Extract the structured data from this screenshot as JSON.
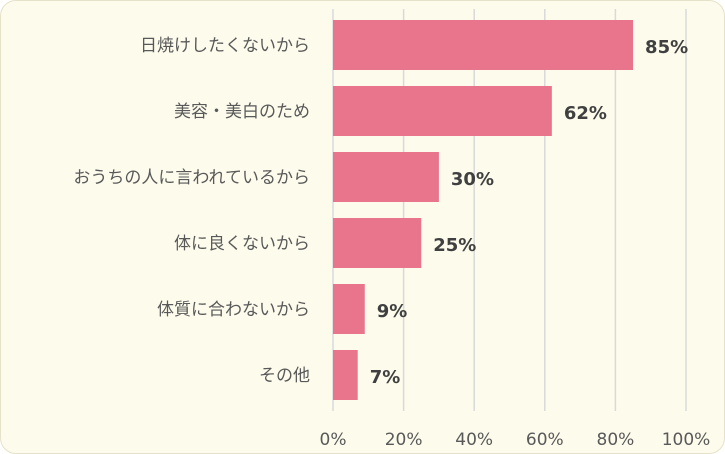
{
  "chart_data": {
    "type": "bar",
    "orientation": "horizontal",
    "categories": [
      "日焼けしたくないから",
      "美容・美白のため",
      "おうちの人に言われているから",
      "体に良くないから",
      "体質に合わないから",
      "その他"
    ],
    "values": [
      85,
      62,
      30,
      25,
      9,
      7
    ],
    "value_labels": [
      "85%",
      "62%",
      "30%",
      "25%",
      "9%",
      "7%"
    ],
    "x_ticks": [
      "0%",
      "20%",
      "40%",
      "60%",
      "80%",
      "100%"
    ],
    "xlim": [
      0,
      100
    ],
    "grid": true,
    "legend": "none",
    "colors": {
      "bar": "#e8758c",
      "background": "#fdfbec",
      "grid": "#d9d9d9"
    }
  }
}
